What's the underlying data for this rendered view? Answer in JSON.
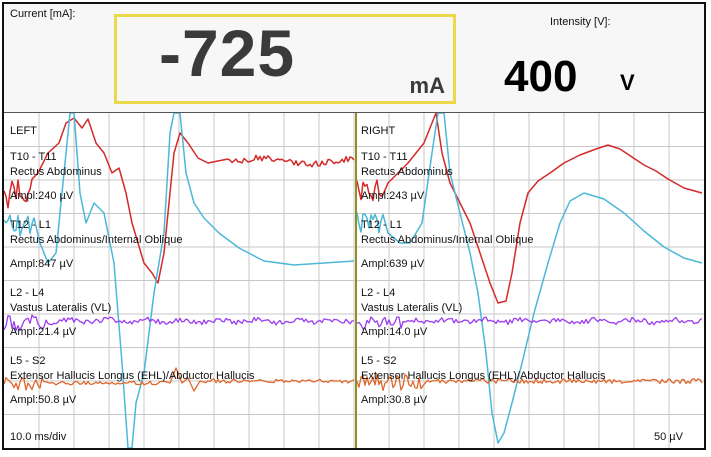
{
  "header": {
    "current_label": "Current [mA]:",
    "current_value": "-725",
    "current_unit": "mA",
    "intensity_label": "Intensity [V]:",
    "intensity_value": "400",
    "intensity_unit": "V"
  },
  "panels": {
    "left": {
      "title": "LEFT",
      "channels": [
        {
          "segment": "T10 - T11",
          "muscle": "Rectus Abdominus",
          "ampl": "Ampl:240 µV"
        },
        {
          "segment": "T12 - L1",
          "muscle": "Rectus Abdominus/Internal Oblique",
          "ampl": "Ampl:847 µV"
        },
        {
          "segment": "L2 - L4",
          "muscle": "Vastus Lateralis (VL)",
          "ampl": "Ampl:21.4 µV"
        },
        {
          "segment": "L5 - S2",
          "muscle": "Extensor Hallucis Longus (EHL)/Abductor Hallucis",
          "ampl": "Ampl:50.8 µV"
        }
      ]
    },
    "right": {
      "title": "RIGHT",
      "channels": [
        {
          "segment": "T10 - T11",
          "muscle": "Rectus Abdominus",
          "ampl": "Ampl:243 µV"
        },
        {
          "segment": "T12 - L1",
          "muscle": "Rectus Abdominus/Internal Oblique",
          "ampl": "Ampl:639 µV"
        },
        {
          "segment": "L2 - L4",
          "muscle": "Vastus Lateralis (VL)",
          "ampl": "Ampl:14.0 µV"
        },
        {
          "segment": "L5 - S2",
          "muscle": "Extensor Hallucis Longus (EHL)/Abductor Hallucis",
          "ampl": "Ampl:30.8 µV"
        }
      ]
    }
  },
  "footer": {
    "timebase": "10.0 ms/div",
    "scale": "50 µV"
  },
  "colors": {
    "ch1": "#d42a2a",
    "ch2": "#4bb8d8",
    "ch3": "#9b3cf0",
    "ch4": "#e0672a",
    "grid": "#c8c8c8",
    "current_box": "#ecd94a"
  }
}
